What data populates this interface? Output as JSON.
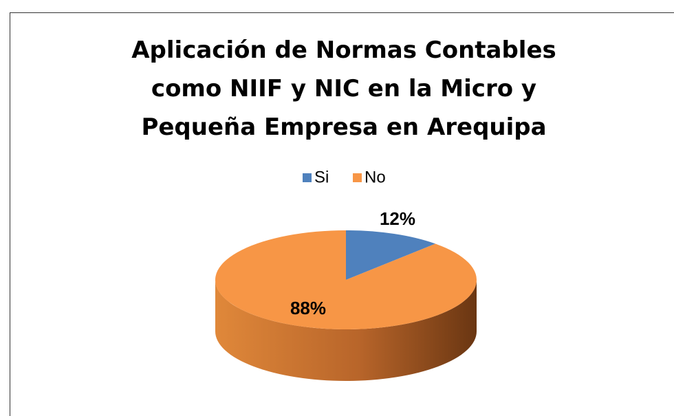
{
  "chart_data": {
    "type": "pie",
    "title": "Aplicación de Normas Contables como NIIF y NIC en la Micro y Pequeña Empresa en Arequipa",
    "categories": [
      "Si",
      "No"
    ],
    "values": [
      12,
      88
    ],
    "value_labels": [
      "12%",
      "88%"
    ],
    "colors": [
      "#4f81bd",
      "#f79646"
    ],
    "legend": "top"
  }
}
